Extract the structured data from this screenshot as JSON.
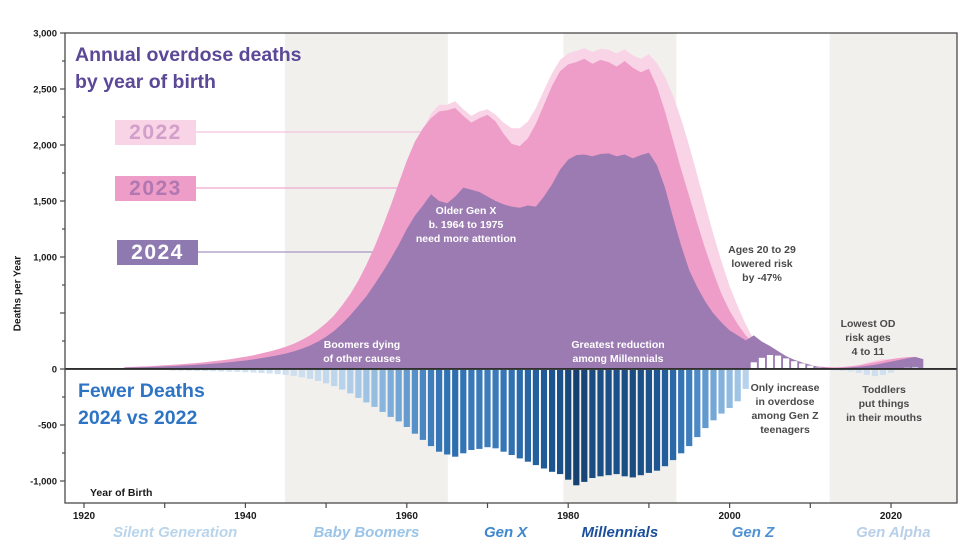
{
  "title": {
    "line1": "Annual overdose deaths",
    "line2": "by year of birth",
    "color": "#5b4897"
  },
  "bottom_title": {
    "line1": "Fewer Deaths",
    "line2": "2024 vs 2022",
    "color": "#2e74c4"
  },
  "axes": {
    "y_label": "Deaths per Year",
    "x_label": "Year of Birth",
    "y_ticks": [
      {
        "v": 3000,
        "label": "3,000"
      },
      {
        "v": 2500,
        "label": "2,500"
      },
      {
        "v": 2000,
        "label": "2,000"
      },
      {
        "v": 1500,
        "label": "1,500"
      },
      {
        "v": 1000,
        "label": "1,000"
      },
      {
        "v": 500,
        "label": ""
      },
      {
        "v": 0,
        "label": "0"
      },
      {
        "v": -500,
        "label": "-500"
      },
      {
        "v": -1000,
        "label": "-1,000"
      }
    ],
    "x_ticks": [
      {
        "year": 1920,
        "label": "1920"
      },
      {
        "year": 1930,
        "label": ""
      },
      {
        "year": 1940,
        "label": "1940"
      },
      {
        "year": 1950,
        "label": ""
      },
      {
        "year": 1960,
        "label": "1960"
      },
      {
        "year": 1970,
        "label": ""
      },
      {
        "year": 1980,
        "label": "1980"
      },
      {
        "year": 1990,
        "label": ""
      },
      {
        "year": 2000,
        "label": "2000"
      },
      {
        "year": 2010,
        "label": ""
      },
      {
        "year": 2020,
        "label": "2020"
      }
    ]
  },
  "legend": {
    "items": [
      {
        "label": "2022",
        "chip_bg": "#f8d4e6",
        "text_color": "#d29fcb",
        "line_color": "#f3c3dd",
        "line_y": 132,
        "line_end_x": 470
      },
      {
        "label": "2023",
        "chip_bg": "#ee9dc8",
        "text_color": "#b077b0",
        "line_color": "#f0a9cf",
        "line_y": 188,
        "line_end_x": 458
      },
      {
        "label": "2024",
        "chip_bg": "#8e7ab0",
        "text_color": "#ffffff",
        "line_color": "#a995c4",
        "line_y": 252,
        "line_end_x": 418
      }
    ]
  },
  "annotations": {
    "older_genx": {
      "line1": "Older Gen X",
      "line2": "b. 1964 to 1975",
      "line3": "need more attention"
    },
    "boomers": {
      "line1": "Boomers dying",
      "line2": "of other causes"
    },
    "greatest": {
      "line1": "Greatest reduction",
      "line2": "among Millennials"
    },
    "ages_20_29": {
      "line1": "Ages 20 to 29",
      "line2": "lowered risk",
      "line3": "by -47%"
    },
    "lowest_od": {
      "line1": "Lowest OD",
      "line2": "risk ages",
      "line3": "4 to 11"
    },
    "genz_increase": {
      "line1": "Only increase",
      "line2": "in overdose",
      "line3": "among Gen Z",
      "line4": "teenagers"
    },
    "toddlers": {
      "line1": "Toddlers",
      "line2": "put things",
      "line3": "in their mouths"
    }
  },
  "generations": [
    {
      "name": "Silent Generation",
      "start": 1917.7,
      "end": 1944.9,
      "band": "none",
      "label_color": "#b9d5ec"
    },
    {
      "name": "Baby Boomers",
      "start": 1944.9,
      "end": 1965.1,
      "band": "#f2f0ed",
      "label_color": "#9ac4e8"
    },
    {
      "name": "Gen X",
      "start": 1965.1,
      "end": 1979.4,
      "band": "none",
      "label_color": "#3c87cd"
    },
    {
      "name": "Millennials",
      "start": 1979.4,
      "end": 1993.4,
      "band": "#f2f0ed",
      "label_color": "#1c4f9c"
    },
    {
      "name": "Gen Z",
      "start": 1993.4,
      "end": 2012.4,
      "band": "none",
      "label_color": "#4e92d2"
    },
    {
      "name": "Gen Alpha",
      "start": 2012.4,
      "end": 2028.2,
      "band": "#f2f0ed",
      "label_color": "#b8cfe9"
    }
  ],
  "chart_data": [
    {
      "type": "area",
      "title": "Annual overdose deaths by year of birth",
      "xlabel": "Year of Birth",
      "ylabel": "Deaths per Year",
      "x_start_year": 1925,
      "ylim": [
        0,
        3000
      ],
      "xlim": [
        1920,
        2024
      ],
      "grid": false,
      "legend_position": "upper-left",
      "series": [
        {
          "name": "2022",
          "color": "#f8d4e6",
          "values": [
            15,
            17,
            19,
            22,
            25,
            29,
            33,
            37,
            42,
            47,
            53,
            60,
            67,
            75,
            85,
            95,
            107,
            121,
            136,
            153,
            172,
            196,
            226,
            262,
            306,
            360,
            425,
            505,
            600,
            715,
            850,
            1005,
            1180,
            1370,
            1570,
            1775,
            1985,
            2140,
            2280,
            2360,
            2360,
            2390,
            2320,
            2260,
            2300,
            2320,
            2270,
            2200,
            2150,
            2150,
            2210,
            2330,
            2490,
            2640,
            2760,
            2820,
            2840,
            2865,
            2830,
            2860,
            2850,
            2820,
            2855,
            2800,
            2770,
            2810,
            2730,
            2610,
            2440,
            2230,
            1990,
            1730,
            1460,
            1200,
            960,
            740,
            560,
            400,
            260,
            150,
            85,
            45,
            25,
            15,
            10,
            7,
            5,
            4,
            4,
            6,
            12,
            30,
            55,
            75,
            90,
            85,
            70,
            50,
            0,
            0
          ]
        },
        {
          "name": "2023",
          "color": "#ee9dc8",
          "values": [
            17,
            19,
            22,
            25,
            29,
            33,
            38,
            43,
            48,
            54,
            61,
            69,
            77,
            86,
            98,
            109,
            123,
            139,
            156,
            176,
            198,
            225,
            260,
            300,
            350,
            410,
            480,
            570,
            670,
            790,
            930,
            1090,
            1270,
            1460,
            1660,
            1860,
            2030,
            2150,
            2240,
            2300,
            2310,
            2330,
            2260,
            2200,
            2240,
            2270,
            2210,
            2100,
            2010,
            1990,
            2060,
            2190,
            2360,
            2530,
            2660,
            2720,
            2740,
            2770,
            2725,
            2760,
            2740,
            2700,
            2750,
            2690,
            2650,
            2680,
            2520,
            2300,
            2040,
            1780,
            1540,
            1300,
            1070,
            860,
            670,
            520,
            400,
            300,
            220,
            160,
            118,
            88,
            65,
            48,
            36,
            28,
            22,
            18,
            16,
            18,
            24,
            34,
            46,
            60,
            74,
            88,
            98,
            106,
            108,
            0
          ]
        },
        {
          "name": "2024",
          "color": "#9c7bb2",
          "values": [
            12,
            14,
            15,
            18,
            20,
            23,
            26,
            30,
            34,
            38,
            42,
            48,
            54,
            60,
            68,
            76,
            86,
            97,
            109,
            122,
            138,
            157,
            181,
            210,
            245,
            288,
            340,
            405,
            480,
            565,
            650,
            755,
            865,
            985,
            1110,
            1250,
            1370,
            1460,
            1560,
            1500,
            1480,
            1540,
            1620,
            1600,
            1580,
            1540,
            1500,
            1470,
            1450,
            1440,
            1460,
            1450,
            1540,
            1650,
            1780,
            1870,
            1910,
            1915,
            1900,
            1920,
            1925,
            1900,
            1915,
            1880,
            1910,
            1930,
            1820,
            1620,
            1350,
            1100,
            880,
            730,
            600,
            495,
            415,
            345,
            300,
            255,
            300,
            245,
            205,
            160,
            115,
            82,
            58,
            38,
            18,
            10,
            8,
            10,
            14,
            20,
            28,
            38,
            52,
            66,
            80,
            95,
            108,
            88
          ]
        }
      ]
    },
    {
      "type": "bar",
      "title": "Fewer Deaths 2024 vs 2022",
      "x_start_year": 1925,
      "ylim": [
        -1200,
        300
      ],
      "positive_color_early": "#ffffff",
      "positive_color_late": "#cfe0f2",
      "negative_stops": [
        [
          0,
          "#d8e5f3"
        ],
        [
          150,
          "#bcd5ec"
        ],
        [
          300,
          "#9cc2e3"
        ],
        [
          450,
          "#74a7d6"
        ],
        [
          600,
          "#4e8ac5"
        ],
        [
          750,
          "#3273b4"
        ],
        [
          900,
          "#1d5693"
        ],
        [
          1030,
          "#16406f"
        ]
      ],
      "values": [
        -2,
        -2,
        -3,
        -3,
        -4,
        -5,
        -6,
        -7,
        -8,
        -9,
        -10,
        -12,
        -14,
        -16,
        -18,
        -21,
        -24,
        -28,
        -32,
        -38,
        -45,
        -55,
        -66,
        -80,
        -98,
        -120,
        -145,
        -175,
        -210,
        -250,
        -290,
        -330,
        -375,
        -420,
        -460,
        -510,
        -570,
        -625,
        -680,
        -730,
        -755,
        -775,
        -745,
        -715,
        -705,
        -690,
        -700,
        -730,
        -760,
        -790,
        -820,
        -850,
        -880,
        -910,
        -930,
        -980,
        -1030,
        -1000,
        -965,
        -950,
        -940,
        -930,
        -950,
        -960,
        -940,
        -920,
        -900,
        -860,
        -805,
        -745,
        -680,
        -600,
        -520,
        -450,
        -390,
        -340,
        -280,
        -170,
        60,
        100,
        125,
        120,
        95,
        70,
        50,
        30,
        12,
        -3,
        -6,
        -10,
        -15,
        -28,
        -45,
        -55,
        -45,
        -25,
        5,
        12,
        15,
        10
      ]
    }
  ]
}
